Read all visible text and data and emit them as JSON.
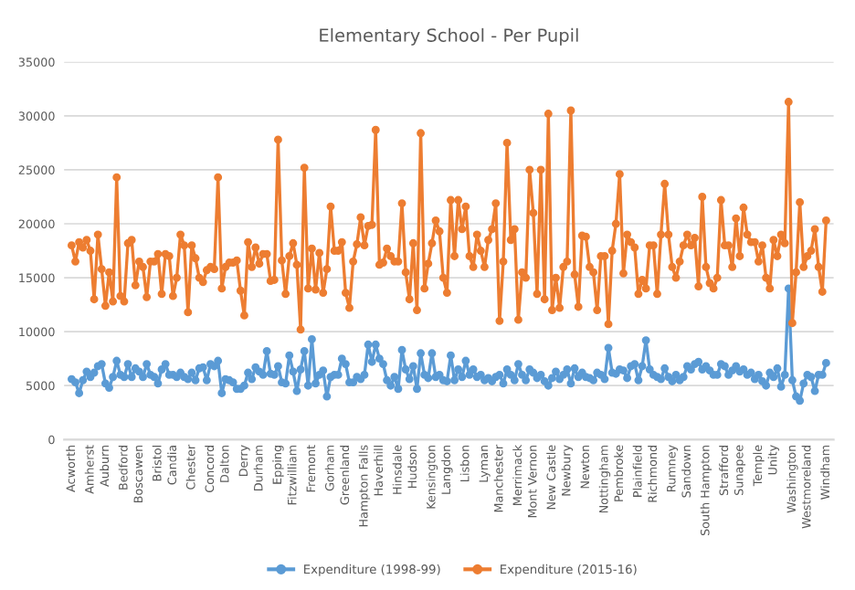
{
  "chart_data": {
    "type": "line",
    "title": "Elementary School - Per Pupil",
    "categories": [
      "Acworth",
      null,
      null,
      null,
      null,
      "Amherst",
      null,
      null,
      null,
      "Auburn",
      null,
      null,
      null,
      null,
      "Bedford",
      null,
      null,
      null,
      "Boscawen",
      null,
      null,
      null,
      null,
      "Bristol",
      null,
      null,
      null,
      "Candia",
      null,
      null,
      null,
      null,
      "Chester",
      null,
      null,
      null,
      null,
      "Concord",
      null,
      null,
      null,
      "Dalton",
      null,
      null,
      null,
      null,
      "Derry",
      null,
      null,
      null,
      "Durham",
      null,
      null,
      null,
      null,
      "Epping",
      null,
      null,
      null,
      "Fitzwilliam",
      null,
      null,
      null,
      null,
      "Fremont",
      null,
      null,
      null,
      null,
      "Gorham",
      null,
      null,
      null,
      "Greenland",
      null,
      null,
      null,
      null,
      "Hampton Falls",
      null,
      null,
      null,
      "Haverhill",
      null,
      null,
      null,
      null,
      "Hinsdale",
      null,
      null,
      null,
      "Hudson",
      null,
      null,
      null,
      null,
      "Kensington",
      null,
      null,
      null,
      "Langdon",
      null,
      null,
      null,
      null,
      "Lisbon",
      null,
      null,
      null,
      null,
      "Lyman",
      null,
      null,
      null,
      "Manchester",
      null,
      null,
      null,
      null,
      "Merrimack",
      null,
      null,
      null,
      "Mont Vernon",
      null,
      null,
      null,
      null,
      "New Castle",
      null,
      null,
      null,
      "Newbury",
      null,
      null,
      null,
      null,
      "Newton",
      null,
      null,
      null,
      null,
      "Nottingham",
      null,
      null,
      null,
      "Pembroke",
      null,
      null,
      null,
      null,
      "Plainfield",
      null,
      null,
      null,
      "Richmond",
      null,
      null,
      null,
      null,
      "Rumney",
      null,
      null,
      null,
      "Sandown",
      null,
      null,
      null,
      null,
      "South Hampton",
      null,
      null,
      null,
      null,
      "Strafford",
      null,
      null,
      null,
      "Sunapee",
      null,
      null,
      null,
      null,
      "Temple",
      null,
      null,
      null,
      "Unity",
      null,
      null,
      null,
      null,
      "Washington",
      null,
      null,
      null,
      "Westmoreland",
      null,
      null,
      null,
      null,
      "Windham"
    ],
    "series": [
      {
        "name": "Expenditure (1998-99)",
        "color": "#5b9bd5",
        "values": [
          5600,
          5300,
          4300,
          5500,
          6300,
          5800,
          6200,
          6800,
          7000,
          5200,
          4800,
          5800,
          7300,
          6000,
          5800,
          7000,
          5800,
          6600,
          6300,
          5800,
          7000,
          6000,
          5800,
          5200,
          6500,
          7000,
          6000,
          6000,
          5800,
          6200,
          5800,
          5600,
          6200,
          5500,
          6600,
          6700,
          5500,
          7000,
          6800,
          7300,
          4300,
          5600,
          5500,
          5300,
          4700,
          4700,
          5000,
          6200,
          5600,
          6700,
          6300,
          6000,
          8200,
          6100,
          6000,
          6800,
          5300,
          5200,
          7800,
          6300,
          4500,
          6500,
          8200,
          5000,
          9300,
          5200,
          6000,
          6400,
          4000,
          5800,
          6000,
          6000,
          7500,
          7000,
          5300,
          5300,
          5800,
          5600,
          6000,
          8800,
          7200,
          8800,
          7500,
          7000,
          5500,
          5000,
          5800,
          4700,
          8300,
          6500,
          5600,
          6800,
          4700,
          8000,
          6000,
          5700,
          8000,
          5800,
          6000,
          5500,
          5400,
          7800,
          5500,
          6500,
          5800,
          7300,
          6000,
          6500,
          5800,
          6000,
          5500,
          5700,
          5400,
          5800,
          6000,
          5200,
          6500,
          6000,
          5500,
          7000,
          6000,
          5500,
          6500,
          6200,
          5700,
          6000,
          5400,
          5000,
          5700,
          6300,
          5600,
          6000,
          6500,
          5200,
          6600,
          5800,
          6200,
          5800,
          5700,
          5500,
          6200,
          6000,
          5600,
          8500,
          6200,
          6100,
          6500,
          6400,
          5700,
          6800,
          7000,
          5500,
          6800,
          9200,
          6500,
          6000,
          5800,
          5600,
          6600,
          5800,
          5400,
          6000,
          5500,
          5800,
          6800,
          6500,
          7000,
          7200,
          6500,
          6800,
          6400,
          6000,
          6000,
          7000,
          6800,
          6000,
          6400,
          6800,
          6300,
          6500,
          6000,
          6200,
          5600,
          6000,
          5400,
          5000,
          6200,
          5800,
          6600,
          4900,
          6000,
          14000,
          5500,
          4000,
          3600,
          5200,
          6000,
          5800,
          4500,
          6000,
          6000,
          7100
        ]
      },
      {
        "name": "Expenditure (2015-16)",
        "color": "#ed7d31",
        "values": [
          18000,
          16500,
          18300,
          17800,
          18500,
          17500,
          13000,
          19000,
          15800,
          12400,
          15500,
          12800,
          24300,
          13300,
          12800,
          18200,
          18500,
          14300,
          16500,
          16000,
          13200,
          16500,
          16500,
          17200,
          13500,
          17200,
          17000,
          13300,
          15000,
          19000,
          18000,
          11800,
          18000,
          16800,
          15000,
          14600,
          15700,
          16000,
          15800,
          24300,
          14000,
          16000,
          16400,
          16400,
          16600,
          13800,
          11500,
          18300,
          16000,
          17800,
          16300,
          17200,
          17200,
          14700,
          14800,
          27800,
          16600,
          13500,
          17000,
          18200,
          16200,
          10200,
          25200,
          14000,
          17700,
          13900,
          17300,
          13600,
          15800,
          21600,
          17500,
          17500,
          18300,
          13600,
          12200,
          16500,
          18100,
          20600,
          18000,
          19800,
          19900,
          28700,
          16200,
          16400,
          17700,
          17000,
          16500,
          16500,
          21900,
          15500,
          13000,
          18200,
          12000,
          28400,
          14000,
          16300,
          18200,
          20300,
          19300,
          15000,
          13600,
          22200,
          17000,
          22200,
          19500,
          21600,
          17000,
          16000,
          19000,
          17500,
          16000,
          18500,
          19500,
          21900,
          11000,
          16500,
          27500,
          18500,
          19500,
          11100,
          15500,
          15000,
          25000,
          21000,
          13500,
          25000,
          13000,
          30200,
          12000,
          15000,
          12200,
          16000,
          16500,
          30500,
          15300,
          12300,
          18900,
          18800,
          16000,
          15500,
          12000,
          17000,
          17000,
          10700,
          17500,
          20000,
          24600,
          15400,
          19000,
          18300,
          17800,
          13500,
          14800,
          14000,
          18000,
          18000,
          13500,
          19000,
          23700,
          19000,
          16000,
          15000,
          16500,
          18000,
          19000,
          18000,
          18700,
          14200,
          22500,
          16000,
          14500,
          14000,
          15000,
          22200,
          18000,
          18000,
          16000,
          20500,
          17000,
          21500,
          19000,
          18300,
          18300,
          16500,
          18000,
          15000,
          14000,
          18500,
          17000,
          19000,
          18200,
          31300,
          10800,
          15500,
          22000,
          16000,
          17000,
          17500,
          19500,
          16000,
          13700,
          20300
        ]
      }
    ],
    "ylim": [
      0,
      35000
    ],
    "yticks": [
      0,
      5000,
      10000,
      15000,
      20000,
      25000,
      30000,
      35000
    ],
    "grid": "y",
    "legend": "bottom",
    "marker": "circle",
    "line_style": "solid"
  }
}
